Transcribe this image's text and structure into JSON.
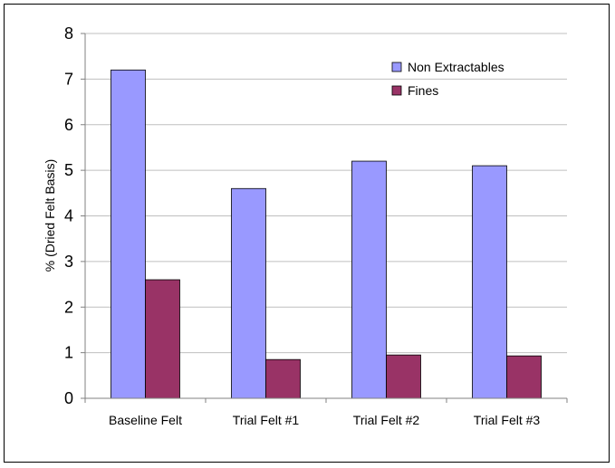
{
  "chart_data": {
    "type": "bar",
    "title": "",
    "xlabel": "",
    "ylabel": "% (Dried Felt Basis)",
    "ylim": [
      0,
      8
    ],
    "yticks": [
      "0",
      "1",
      "2",
      "3",
      "4",
      "5",
      "6",
      "7",
      "8"
    ],
    "grid": true,
    "legend_position": "top-right",
    "categories": [
      "Baseline Felt",
      "Trial Felt #1",
      "Trial Felt #2",
      "Trial Felt #3"
    ],
    "series": [
      {
        "name": "Non Extractables",
        "color": "#9999ff",
        "values": [
          7.2,
          4.6,
          5.2,
          5.1
        ]
      },
      {
        "name": "Fines",
        "color": "#993366",
        "values": [
          2.6,
          0.85,
          0.95,
          0.93
        ]
      }
    ]
  }
}
